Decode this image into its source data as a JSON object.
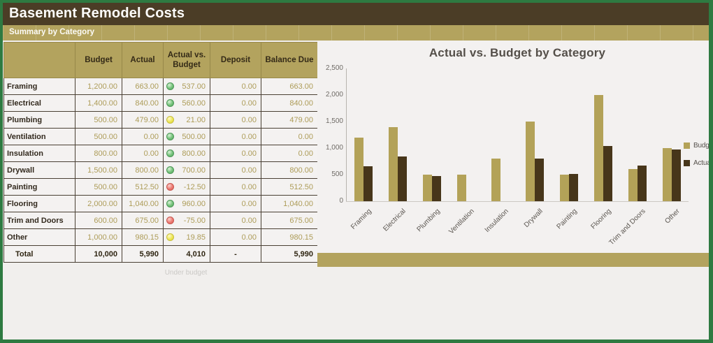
{
  "title": "Basement Remodel Costs",
  "section_header": "Summary by Category",
  "table": {
    "columns": [
      "",
      "Budget",
      "Actual",
      "Actual vs. Budget",
      "Deposit",
      "Balance Due"
    ],
    "rows": [
      {
        "category": "Framing",
        "budget": "1,200.00",
        "actual": "663.00",
        "status": "green",
        "actual_vs_budget": "537.00",
        "deposit": "0.00",
        "balance_due": "663.00"
      },
      {
        "category": "Electrical",
        "budget": "1,400.00",
        "actual": "840.00",
        "status": "green",
        "actual_vs_budget": "560.00",
        "deposit": "0.00",
        "balance_due": "840.00"
      },
      {
        "category": "Plumbing",
        "budget": "500.00",
        "actual": "479.00",
        "status": "yellow",
        "actual_vs_budget": "21.00",
        "deposit": "0.00",
        "balance_due": "479.00"
      },
      {
        "category": "Ventilation",
        "budget": "500.00",
        "actual": "0.00",
        "status": "green",
        "actual_vs_budget": "500.00",
        "deposit": "0.00",
        "balance_due": "0.00"
      },
      {
        "category": "Insulation",
        "budget": "800.00",
        "actual": "0.00",
        "status": "green",
        "actual_vs_budget": "800.00",
        "deposit": "0.00",
        "balance_due": "0.00"
      },
      {
        "category": "Drywall",
        "budget": "1,500.00",
        "actual": "800.00",
        "status": "green",
        "actual_vs_budget": "700.00",
        "deposit": "0.00",
        "balance_due": "800.00"
      },
      {
        "category": "Painting",
        "budget": "500.00",
        "actual": "512.50",
        "status": "red",
        "actual_vs_budget": "-12.50",
        "deposit": "0.00",
        "balance_due": "512.50"
      },
      {
        "category": "Flooring",
        "budget": "2,000.00",
        "actual": "1,040.00",
        "status": "green",
        "actual_vs_budget": "960.00",
        "deposit": "0.00",
        "balance_due": "1,040.00"
      },
      {
        "category": "Trim and Doors",
        "budget": "600.00",
        "actual": "675.00",
        "status": "red",
        "actual_vs_budget": "-75.00",
        "deposit": "0.00",
        "balance_due": "675.00"
      },
      {
        "category": "Other",
        "budget": "1,000.00",
        "actual": "980.15",
        "status": "yellow",
        "actual_vs_budget": "19.85",
        "deposit": "0.00",
        "balance_due": "980.15"
      }
    ],
    "total": {
      "label": "Total",
      "budget": "10,000",
      "actual": "5,990",
      "actual_vs_budget": "4,010",
      "deposit": "-",
      "balance_due": "5,990"
    },
    "note": "Under budget"
  },
  "chart_data": {
    "type": "bar",
    "title": "Actual vs. Budget by Category",
    "categories": [
      "Framing",
      "Electrical",
      "Plumbing",
      "Ventilation",
      "Insulation",
      "Drywall",
      "Painting",
      "Flooring",
      "Trim and Doors",
      "Other"
    ],
    "series": [
      {
        "name": "Budget",
        "color": "#b3a258",
        "values": [
          1200,
          1400,
          500,
          500,
          800,
          1500,
          500,
          2000,
          600,
          1000
        ]
      },
      {
        "name": "Actual",
        "color": "#47361a",
        "values": [
          663,
          840,
          479,
          0,
          0,
          800,
          512.5,
          1040,
          675,
          980.15
        ]
      }
    ],
    "xlabel": "",
    "ylabel": "",
    "ylim": [
      0,
      2500
    ],
    "yticks": [
      "0",
      "500",
      "1,000",
      "1,500",
      "2,000",
      "2,500"
    ],
    "grid": false,
    "legend_position": "right"
  },
  "colors": {
    "frame_green": "#2e7a41",
    "title_bar_brown": "#4b3d26",
    "accent_tan": "#b3a35e",
    "budget_bar": "#b3a258",
    "actual_bar": "#47361a",
    "status_green": "#67bb6a",
    "status_yellow": "#e8df4f",
    "status_red": "#e2635d"
  }
}
